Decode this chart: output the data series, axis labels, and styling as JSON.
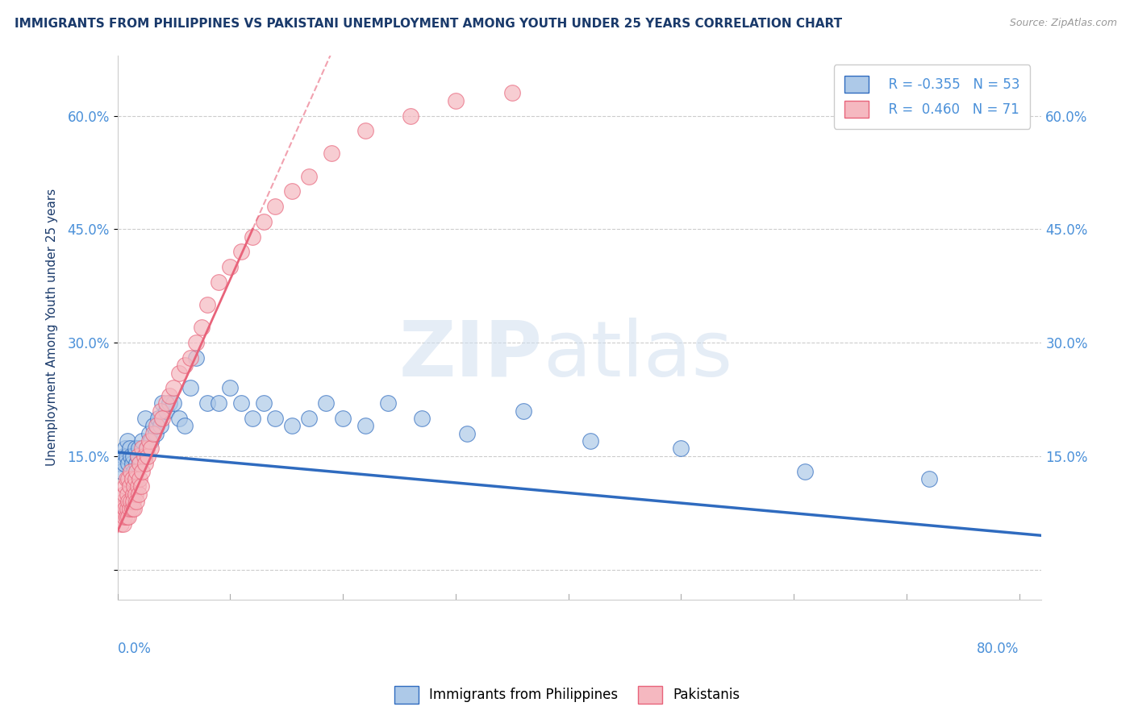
{
  "title": "IMMIGRANTS FROM PHILIPPINES VS PAKISTANI UNEMPLOYMENT AMONG YOUTH UNDER 25 YEARS CORRELATION CHART",
  "source": "Source: ZipAtlas.com",
  "ylabel": "Unemployment Among Youth under 25 years",
  "yticks": [
    0.0,
    0.15,
    0.3,
    0.45,
    0.6
  ],
  "ytick_labels": [
    "",
    "15.0%",
    "30.0%",
    "45.0%",
    "60.0%"
  ],
  "xlim": [
    0.0,
    0.82
  ],
  "ylim": [
    -0.04,
    0.68
  ],
  "blue_color": "#adc9e8",
  "pink_color": "#f5b8c0",
  "blue_line_color": "#2f6bbf",
  "pink_line_color": "#e8637a",
  "title_color": "#1a3a6b",
  "axis_color": "#4a90d9",
  "blue_scatter_x": [
    0.002,
    0.004,
    0.005,
    0.006,
    0.007,
    0.008,
    0.009,
    0.01,
    0.011,
    0.012,
    0.013,
    0.014,
    0.015,
    0.016,
    0.017,
    0.018,
    0.019,
    0.02,
    0.022,
    0.024,
    0.025,
    0.026,
    0.028,
    0.03,
    0.032,
    0.034,
    0.036,
    0.038,
    0.04,
    0.043,
    0.046,
    0.05,
    0.055,
    0.06,
    0.065,
    0.07,
    0.08,
    0.09,
    0.1,
    0.11,
    0.12,
    0.13,
    0.14,
    0.155,
    0.17,
    0.185,
    0.2,
    0.22,
    0.24,
    0.27,
    0.31,
    0.36,
    0.42,
    0.5,
    0.61,
    0.72
  ],
  "blue_scatter_y": [
    0.14,
    0.13,
    0.15,
    0.14,
    0.16,
    0.15,
    0.17,
    0.14,
    0.16,
    0.15,
    0.14,
    0.15,
    0.13,
    0.16,
    0.14,
    0.15,
    0.16,
    0.14,
    0.17,
    0.15,
    0.2,
    0.16,
    0.18,
    0.17,
    0.19,
    0.18,
    0.2,
    0.19,
    0.22,
    0.21,
    0.22,
    0.22,
    0.2,
    0.19,
    0.24,
    0.28,
    0.22,
    0.22,
    0.24,
    0.22,
    0.2,
    0.22,
    0.2,
    0.19,
    0.2,
    0.22,
    0.2,
    0.19,
    0.22,
    0.2,
    0.18,
    0.21,
    0.17,
    0.16,
    0.13,
    0.12
  ],
  "pink_scatter_x": [
    0.001,
    0.002,
    0.003,
    0.004,
    0.005,
    0.005,
    0.006,
    0.006,
    0.007,
    0.007,
    0.008,
    0.008,
    0.009,
    0.009,
    0.01,
    0.01,
    0.01,
    0.011,
    0.011,
    0.012,
    0.012,
    0.013,
    0.013,
    0.014,
    0.014,
    0.015,
    0.015,
    0.016,
    0.016,
    0.017,
    0.017,
    0.018,
    0.018,
    0.019,
    0.02,
    0.02,
    0.021,
    0.022,
    0.022,
    0.024,
    0.025,
    0.026,
    0.027,
    0.028,
    0.03,
    0.032,
    0.035,
    0.038,
    0.04,
    0.043,
    0.046,
    0.05,
    0.055,
    0.06,
    0.065,
    0.07,
    0.075,
    0.08,
    0.09,
    0.1,
    0.11,
    0.12,
    0.13,
    0.14,
    0.155,
    0.17,
    0.19,
    0.22,
    0.26,
    0.3,
    0.35
  ],
  "pink_scatter_y": [
    0.08,
    0.07,
    0.06,
    0.08,
    0.06,
    0.09,
    0.07,
    0.1,
    0.08,
    0.11,
    0.07,
    0.12,
    0.08,
    0.1,
    0.07,
    0.09,
    0.12,
    0.08,
    0.11,
    0.09,
    0.13,
    0.08,
    0.12,
    0.1,
    0.09,
    0.11,
    0.08,
    0.12,
    0.1,
    0.09,
    0.13,
    0.11,
    0.15,
    0.1,
    0.12,
    0.14,
    0.11,
    0.13,
    0.16,
    0.15,
    0.14,
    0.16,
    0.15,
    0.17,
    0.16,
    0.18,
    0.19,
    0.21,
    0.2,
    0.22,
    0.23,
    0.24,
    0.26,
    0.27,
    0.28,
    0.3,
    0.32,
    0.35,
    0.38,
    0.4,
    0.42,
    0.44,
    0.46,
    0.48,
    0.5,
    0.52,
    0.55,
    0.58,
    0.6,
    0.62,
    0.63
  ]
}
